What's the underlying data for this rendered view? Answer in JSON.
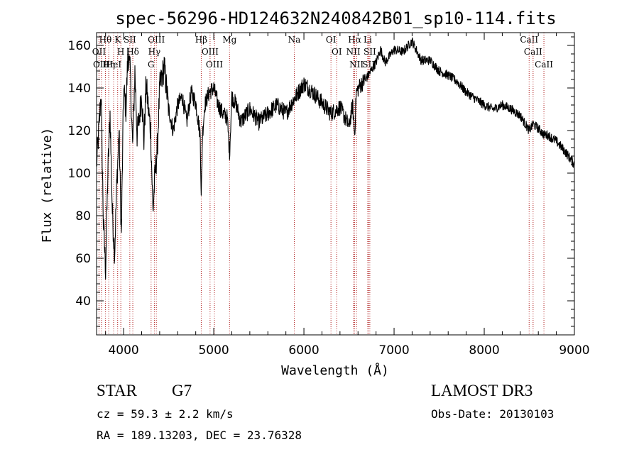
{
  "chart_data": {
    "type": "line",
    "title": "spec-56296-HD124632N240842B01_sp10-114.fits",
    "xlabel": "Wavelength (Å)",
    "ylabel": "Flux (relative)",
    "xlim": [
      3700,
      9000
    ],
    "ylim": [
      24,
      166
    ],
    "x_ticks": [
      4000,
      5000,
      6000,
      7000,
      8000,
      9000
    ],
    "y_ticks": [
      40,
      60,
      80,
      100,
      120,
      140,
      160
    ],
    "grid": false,
    "line_color": "#000000",
    "marker_color": "#b22222",
    "spectrum": {
      "x": [
        3700,
        3725,
        3750,
        3775,
        3800,
        3825,
        3850,
        3875,
        3900,
        3925,
        3950,
        3975,
        4000,
        4025,
        4050,
        4075,
        4100,
        4125,
        4150,
        4175,
        4200,
        4225,
        4250,
        4275,
        4300,
        4325,
        4350,
        4375,
        4400,
        4450,
        4500,
        4550,
        4600,
        4650,
        4700,
        4750,
        4800,
        4850,
        4861,
        4875,
        4900,
        4950,
        5000,
        5050,
        5100,
        5150,
        5175,
        5200,
        5250,
        5300,
        5400,
        5500,
        5600,
        5700,
        5800,
        5893,
        6000,
        6100,
        6200,
        6300,
        6400,
        6500,
        6540,
        6563,
        6580,
        6620,
        6700,
        6800,
        6850,
        6900,
        7000,
        7100,
        7200,
        7300,
        7400,
        7500,
        7600,
        7700,
        7800,
        7900,
        8000,
        8100,
        8200,
        8300,
        8400,
        8498,
        8542,
        8600,
        8662,
        8700,
        8800,
        8900,
        9000
      ],
      "y": [
        104,
        120,
        138,
        78,
        55,
        100,
        128,
        82,
        62,
        96,
        120,
        70,
        140,
        130,
        158,
        146,
        112,
        148,
        118,
        126,
        138,
        115,
        142,
        130,
        120,
        82,
        100,
        112,
        140,
        150,
        130,
        120,
        132,
        136,
        124,
        138,
        133,
        118,
        88,
        118,
        132,
        138,
        140,
        132,
        128,
        126,
        109,
        136,
        132,
        124,
        130,
        124,
        128,
        132,
        128,
        135,
        142,
        138,
        133,
        128,
        131,
        122,
        132,
        118,
        138,
        141,
        145,
        152,
        158,
        152,
        158,
        157,
        162,
        153,
        153,
        148,
        146,
        143,
        138,
        135,
        132,
        130,
        132,
        130,
        127,
        120,
        123,
        121,
        118,
        118,
        115,
        110,
        104
      ]
    },
    "markers": [
      {
        "label": "Hθ",
        "x": 3798
      },
      {
        "label": "OII",
        "x": 3727
      },
      {
        "label": "OIII",
        "x": 3755
      },
      {
        "label": "Hη",
        "x": 3835
      },
      {
        "label": "HeI",
        "x": 3889
      },
      {
        "label": "K",
        "x": 3934
      },
      {
        "label": "H",
        "x": 3969
      },
      {
        "label": "SII",
        "x": 4069
      },
      {
        "label": "Hδ",
        "x": 4102
      },
      {
        "label": "OIII",
        "x": 4363
      },
      {
        "label": "Hγ",
        "x": 4341
      },
      {
        "label": "G",
        "x": 4305
      },
      {
        "label": "Hβ",
        "x": 4861
      },
      {
        "label": "OIII",
        "x": 4959
      },
      {
        "label": "OIII",
        "x": 5007
      },
      {
        "label": "Mg",
        "x": 5175
      },
      {
        "label": "Na",
        "x": 5893
      },
      {
        "label": "OI",
        "x": 6300
      },
      {
        "label": "OI",
        "x": 6364
      },
      {
        "label": "Hα",
        "x": 6563
      },
      {
        "label": "NII",
        "x": 6548
      },
      {
        "label": "NII",
        "x": 6583
      },
      {
        "label": "Li",
        "x": 6708
      },
      {
        "label": "SII",
        "x": 6717
      },
      {
        "label": "SII",
        "x": 6731
      },
      {
        "label": "CaII",
        "x": 8498
      },
      {
        "label": "CaII",
        "x": 8542
      },
      {
        "label": "CaII",
        "x": 8662
      }
    ]
  },
  "info": {
    "object_type": "STAR",
    "subclass": "G7",
    "survey": "LAMOST DR3",
    "redshift": "cz = 59.3 ± 2.2 km/s",
    "obs_date": "Obs-Date: 20130103",
    "coords": "RA = 189.13203, DEC =  23.76328"
  }
}
